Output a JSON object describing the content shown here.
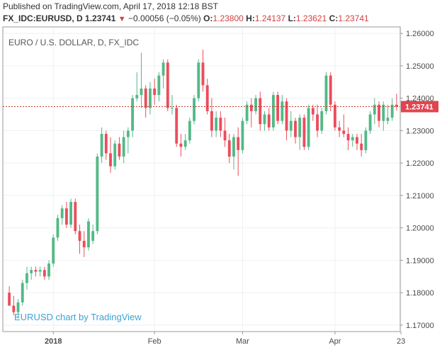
{
  "header": {
    "published": "Published on TradingView.com, April 17, 2018 12:18 BST",
    "symbol": "FX_IDC:EURUSD, D",
    "last": "1.23741",
    "arrow": "▼",
    "change": "−0.00056 (−0.05%)",
    "o_label": "O:",
    "o_value": "1.23800",
    "h_label": "H:",
    "h_value": "1.24137",
    "l_label": "L:",
    "l_value": "1.23621",
    "c_label": "C:",
    "c_value": "1.23741"
  },
  "pane_label": "EURO / U.S. DOLLAR, D, FX_IDC",
  "watermark": "EURUSD chart by TradingView",
  "colors": {
    "up": "#53b987",
    "down": "#eb4d5c",
    "price_line": "#c0392b",
    "price_tag": "#e0454f",
    "grid": "#eef0f2",
    "border": "#9a9a9a"
  },
  "chart_data": {
    "type": "candlestick",
    "title": "EURO / U.S. DOLLAR, D, FX_IDC",
    "ylim": [
      1.168,
      1.262
    ],
    "y_ticks": [
      "1.26000",
      "1.25000",
      "1.24000",
      "1.23000",
      "1.22000",
      "1.21000",
      "1.20000",
      "1.19000",
      "1.18000",
      "1.17000"
    ],
    "y_tick_values": [
      1.26,
      1.25,
      1.24,
      1.23,
      1.22,
      1.21,
      1.2,
      1.19,
      1.18,
      1.17
    ],
    "x_ticks": [
      {
        "label": "2018",
        "bar": 10,
        "bold": true
      },
      {
        "label": "Feb",
        "bar": 33,
        "bold": false
      },
      {
        "label": "Mar",
        "bar": 53,
        "bold": false
      },
      {
        "label": "Apr",
        "bar": 74,
        "bold": false
      },
      {
        "label": "23",
        "bar": 89,
        "bold": false
      }
    ],
    "last_price": 1.23741,
    "last_price_label": "1.23741",
    "candles": [
      [
        1.18,
        1.182,
        1.176,
        1.176
      ],
      [
        1.176,
        1.179,
        1.173,
        1.174
      ],
      [
        1.174,
        1.178,
        1.172,
        1.177
      ],
      [
        1.177,
        1.184,
        1.176,
        1.183
      ],
      [
        1.183,
        1.188,
        1.181,
        1.186
      ],
      [
        1.186,
        1.188,
        1.184,
        1.187
      ],
      [
        1.187,
        1.188,
        1.185,
        1.1865
      ],
      [
        1.1865,
        1.188,
        1.185,
        1.187
      ],
      [
        1.187,
        1.188,
        1.184,
        1.185
      ],
      [
        1.185,
        1.19,
        1.184,
        1.189
      ],
      [
        1.189,
        1.198,
        1.188,
        1.197
      ],
      [
        1.197,
        1.204,
        1.196,
        1.203
      ],
      [
        1.203,
        1.207,
        1.201,
        1.206
      ],
      [
        1.206,
        1.208,
        1.2,
        1.201
      ],
      [
        1.201,
        1.209,
        1.2,
        1.208
      ],
      [
        1.208,
        1.209,
        1.198,
        1.199
      ],
      [
        1.199,
        1.201,
        1.192,
        1.196
      ],
      [
        1.196,
        1.199,
        1.191,
        1.194
      ],
      [
        1.194,
        1.203,
        1.193,
        1.202
      ],
      [
        1.196,
        1.201,
        1.195,
        1.199
      ],
      [
        1.199,
        1.223,
        1.198,
        1.222
      ],
      [
        1.222,
        1.231,
        1.22,
        1.229
      ],
      [
        1.229,
        1.23,
        1.221,
        1.223
      ],
      [
        1.223,
        1.228,
        1.217,
        1.219
      ],
      [
        1.219,
        1.227,
        1.218,
        1.226
      ],
      [
        1.226,
        1.228,
        1.221,
        1.222
      ],
      [
        1.222,
        1.23,
        1.22,
        1.228
      ],
      [
        1.228,
        1.231,
        1.223,
        1.23
      ],
      [
        1.23,
        1.241,
        1.228,
        1.24
      ],
      [
        1.24,
        1.248,
        1.239,
        1.241
      ],
      [
        1.241,
        1.254,
        1.237,
        1.243
      ],
      [
        1.243,
        1.244,
        1.234,
        1.237
      ],
      [
        1.237,
        1.245,
        1.235,
        1.243
      ],
      [
        1.243,
        1.246,
        1.238,
        1.241
      ],
      [
        1.241,
        1.248,
        1.239,
        1.247
      ],
      [
        1.247,
        1.252,
        1.243,
        1.251
      ],
      [
        1.251,
        1.252,
        1.236,
        1.237
      ],
      [
        1.237,
        1.241,
        1.235,
        1.237
      ],
      [
        1.237,
        1.238,
        1.225,
        1.226
      ],
      [
        1.226,
        1.229,
        1.222,
        1.225
      ],
      [
        1.225,
        1.229,
        1.224,
        1.227
      ],
      [
        1.227,
        1.234,
        1.226,
        1.233
      ],
      [
        1.233,
        1.241,
        1.232,
        1.24
      ],
      [
        1.24,
        1.252,
        1.239,
        1.251
      ],
      [
        1.251,
        1.255,
        1.242,
        1.244
      ],
      [
        1.244,
        1.246,
        1.235,
        1.236
      ],
      [
        1.236,
        1.24,
        1.228,
        1.23
      ],
      [
        1.23,
        1.236,
        1.228,
        1.234
      ],
      [
        1.234,
        1.236,
        1.228,
        1.23
      ],
      [
        1.23,
        1.234,
        1.225,
        1.227
      ],
      [
        1.227,
        1.229,
        1.22,
        1.222
      ],
      [
        1.222,
        1.229,
        1.218,
        1.228
      ],
      [
        1.228,
        1.231,
        1.216,
        1.224
      ],
      [
        1.224,
        1.234,
        1.223,
        1.233
      ],
      [
        1.233,
        1.239,
        1.232,
        1.238
      ],
      [
        1.238,
        1.24,
        1.231,
        1.236
      ],
      [
        1.236,
        1.241,
        1.235,
        1.24
      ],
      [
        1.24,
        1.242,
        1.23,
        1.232
      ],
      [
        1.232,
        1.236,
        1.23,
        1.235
      ],
      [
        1.235,
        1.237,
        1.23,
        1.231
      ],
      [
        1.231,
        1.242,
        1.23,
        1.241
      ],
      [
        1.241,
        1.242,
        1.232,
        1.233
      ],
      [
        1.233,
        1.241,
        1.232,
        1.239
      ],
      [
        1.239,
        1.24,
        1.227,
        1.23
      ],
      [
        1.23,
        1.236,
        1.228,
        1.233
      ],
      [
        1.233,
        1.234,
        1.226,
        1.228
      ],
      [
        1.228,
        1.235,
        1.224,
        1.234
      ],
      [
        1.234,
        1.235,
        1.224,
        1.225
      ],
      [
        1.225,
        1.238,
        1.224,
        1.237
      ],
      [
        1.237,
        1.238,
        1.233,
        1.235
      ],
      [
        1.235,
        1.238,
        1.228,
        1.23
      ],
      [
        1.23,
        1.237,
        1.229,
        1.236
      ],
      [
        1.236,
        1.248,
        1.235,
        1.247
      ],
      [
        1.247,
        1.248,
        1.236,
        1.238
      ],
      [
        1.238,
        1.239,
        1.23,
        1.231
      ],
      [
        1.231,
        1.233,
        1.228,
        1.23
      ],
      [
        1.23,
        1.235,
        1.228,
        1.229
      ],
      [
        1.229,
        1.231,
        1.224,
        1.227
      ],
      [
        1.227,
        1.229,
        1.225,
        1.228
      ],
      [
        1.228,
        1.229,
        1.224,
        1.226
      ],
      [
        1.226,
        1.229,
        1.222,
        1.224
      ],
      [
        1.224,
        1.231,
        1.223,
        1.23
      ],
      [
        1.23,
        1.236,
        1.229,
        1.235
      ],
      [
        1.235,
        1.24,
        1.232,
        1.238
      ],
      [
        1.238,
        1.239,
        1.231,
        1.233
      ],
      [
        1.233,
        1.239,
        1.23,
        1.238
      ],
      [
        1.233,
        1.238,
        1.232,
        1.234
      ],
      [
        1.234,
        1.24,
        1.233,
        1.238
      ],
      [
        1.238,
        1.2414,
        1.2362,
        1.2374
      ]
    ]
  }
}
